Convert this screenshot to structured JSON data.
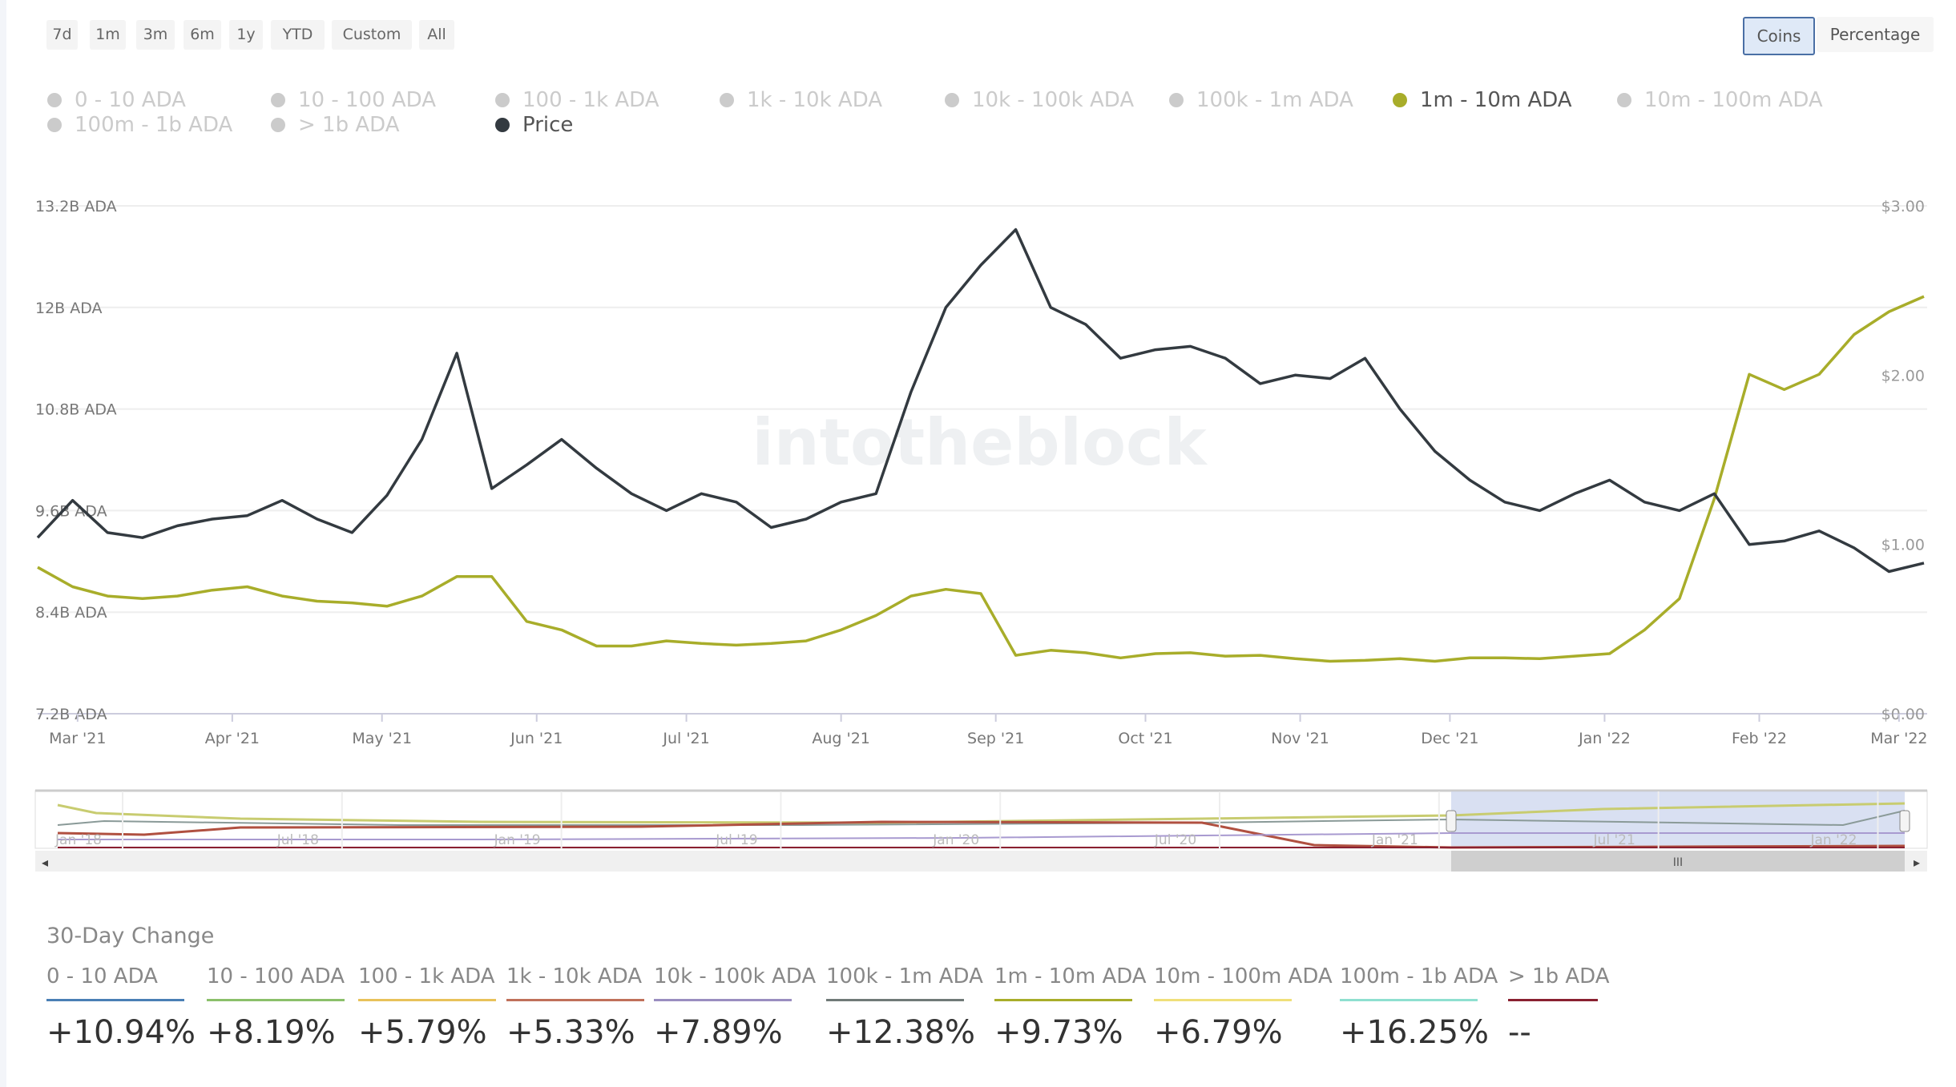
{
  "range_buttons": [
    "7d",
    "1m",
    "3m",
    "6m",
    "1y",
    "YTD",
    "Custom",
    "All"
  ],
  "mode_toggle": {
    "coins": "Coins",
    "percentage": "Percentage",
    "selected": "Coins"
  },
  "legend": [
    {
      "label": "0 - 10 ADA",
      "active": false
    },
    {
      "label": "10 - 100 ADA",
      "active": false
    },
    {
      "label": "100 - 1k ADA",
      "active": false
    },
    {
      "label": "1k - 10k ADA",
      "active": false
    },
    {
      "label": "10k - 100k ADA",
      "active": false
    },
    {
      "label": "100k - 1m ADA",
      "active": false
    },
    {
      "label": "1m - 10m ADA",
      "active": true
    },
    {
      "label": "10m - 100m ADA",
      "active": false
    },
    {
      "label": "100m - 1b ADA",
      "active": false
    },
    {
      "label": "> 1b ADA",
      "active": false
    },
    {
      "label": "Price",
      "active": true
    }
  ],
  "watermark": "intotheblock",
  "chart_data": {
    "type": "line",
    "grid": true,
    "legend_placement": "top",
    "y_left": {
      "ticks": [
        "13.2B ADA",
        "12B ADA",
        "10.8B ADA",
        "9.6B ADA",
        "8.4B ADA",
        "7.2B ADA"
      ],
      "tick_values": [
        13.2,
        12,
        10.8,
        9.6,
        8.4,
        7.2
      ],
      "range": [
        7.2,
        13.2
      ],
      "unit": "B ADA"
    },
    "y_right": {
      "ticks": [
        "$3.00",
        "$2.00",
        "$1.00",
        "$0.00"
      ],
      "tick_values": [
        3,
        2,
        1,
        0
      ],
      "range": [
        0,
        3
      ]
    },
    "x_ticks": [
      {
        "label": "Mar '21",
        "date": "2021-03-01"
      },
      {
        "label": "Apr '21",
        "date": "2021-04-01"
      },
      {
        "label": "May '21",
        "date": "2021-05-01"
      },
      {
        "label": "Jun '21",
        "date": "2021-06-01"
      },
      {
        "label": "Jul '21",
        "date": "2021-07-01"
      },
      {
        "label": "Aug '21",
        "date": "2021-08-01"
      },
      {
        "label": "Sep '21",
        "date": "2021-09-01"
      },
      {
        "label": "Oct '21",
        "date": "2021-10-01"
      },
      {
        "label": "Nov '21",
        "date": "2021-11-01"
      },
      {
        "label": "Dec '21",
        "date": "2021-12-01"
      },
      {
        "label": "Jan '22",
        "date": "2022-01-01"
      },
      {
        "label": "Feb '22",
        "date": "2022-02-01"
      },
      {
        "label": "Mar '22",
        "date": "2022-03-01"
      }
    ],
    "x": [
      "2021-02-21",
      "2021-02-28",
      "2021-03-07",
      "2021-03-14",
      "2021-03-21",
      "2021-03-28",
      "2021-04-04",
      "2021-04-11",
      "2021-04-18",
      "2021-04-25",
      "2021-05-02",
      "2021-05-09",
      "2021-05-16",
      "2021-05-23",
      "2021-05-30",
      "2021-06-06",
      "2021-06-13",
      "2021-06-20",
      "2021-06-27",
      "2021-07-04",
      "2021-07-11",
      "2021-07-18",
      "2021-07-25",
      "2021-08-01",
      "2021-08-08",
      "2021-08-15",
      "2021-08-22",
      "2021-08-29",
      "2021-09-05",
      "2021-09-12",
      "2021-09-19",
      "2021-09-26",
      "2021-10-03",
      "2021-10-10",
      "2021-10-17",
      "2021-10-24",
      "2021-10-31",
      "2021-11-07",
      "2021-11-14",
      "2021-11-21",
      "2021-11-28",
      "2021-12-05",
      "2021-12-12",
      "2021-12-19",
      "2021-12-26",
      "2022-01-02",
      "2022-01-09",
      "2022-01-16",
      "2022-01-23",
      "2022-01-30",
      "2022-02-06",
      "2022-02-13",
      "2022-02-20",
      "2022-02-27",
      "2022-03-06"
    ],
    "series": [
      {
        "name": "1m - 10m ADA",
        "axis": "left",
        "color": "#a8ad2a",
        "values": [
          8.93,
          8.7,
          8.59,
          8.56,
          8.59,
          8.66,
          8.7,
          8.59,
          8.53,
          8.51,
          8.47,
          8.59,
          8.82,
          8.82,
          8.29,
          8.19,
          8.0,
          8.0,
          8.06,
          8.03,
          8.01,
          8.03,
          8.06,
          8.19,
          8.36,
          8.59,
          8.67,
          8.62,
          7.89,
          7.95,
          7.92,
          7.86,
          7.91,
          7.92,
          7.88,
          7.89,
          7.85,
          7.82,
          7.83,
          7.85,
          7.82,
          7.86,
          7.86,
          7.85,
          7.88,
          7.91,
          8.19,
          8.56,
          9.74,
          11.21,
          11.03,
          11.21,
          11.68,
          11.95,
          12.13
        ]
      },
      {
        "name": "Price",
        "axis": "right",
        "color": "#333a40",
        "values": [
          1.04,
          1.26,
          1.07,
          1.04,
          1.11,
          1.15,
          1.17,
          1.26,
          1.15,
          1.07,
          1.29,
          1.62,
          2.13,
          1.33,
          1.47,
          1.62,
          1.45,
          1.3,
          1.2,
          1.3,
          1.25,
          1.1,
          1.15,
          1.25,
          1.3,
          1.9,
          2.4,
          2.65,
          2.86,
          2.4,
          2.3,
          2.1,
          2.15,
          2.17,
          2.1,
          1.95,
          2.0,
          1.98,
          2.1,
          1.8,
          1.55,
          1.38,
          1.25,
          1.2,
          1.3,
          1.38,
          1.25,
          1.2,
          1.3,
          1.0,
          1.02,
          1.08,
          0.98,
          0.84,
          0.89
        ]
      }
    ]
  },
  "navigator": {
    "labels": [
      "Jan '18",
      "Jul '18",
      "Jan '19",
      "Jul '19",
      "Jan '20",
      "Jul '20",
      "Jan '21",
      "Jul '21",
      "Jan '22"
    ]
  },
  "thirty_day": {
    "title": "30-Day Change",
    "items": [
      {
        "label": "0 - 10 ADA",
        "value": "+10.94%",
        "color": "#4a7fb5"
      },
      {
        "label": "10 - 100 ADA",
        "value": "+8.19%",
        "color": "#8bc06a"
      },
      {
        "label": "100 - 1k ADA",
        "value": "+5.79%",
        "color": "#e8c25a"
      },
      {
        "label": "1k - 10k ADA",
        "value": "+5.33%",
        "color": "#c0705a"
      },
      {
        "label": "10k - 100k ADA",
        "value": "+7.89%",
        "color": "#9a8ec0"
      },
      {
        "label": "100k - 1m ADA",
        "value": "+12.38%",
        "color": "#707a78"
      },
      {
        "label": "1m - 10m ADA",
        "value": "+9.73%",
        "color": "#a8ad2a"
      },
      {
        "label": "10m - 100m ADA",
        "value": "+6.79%",
        "color": "#f0e07a"
      },
      {
        "label": "100m - 1b ADA",
        "value": "+16.25%",
        "color": "#8fe0d0"
      },
      {
        "label": "> 1b ADA",
        "value": "--",
        "color": "#8a2030"
      }
    ]
  }
}
